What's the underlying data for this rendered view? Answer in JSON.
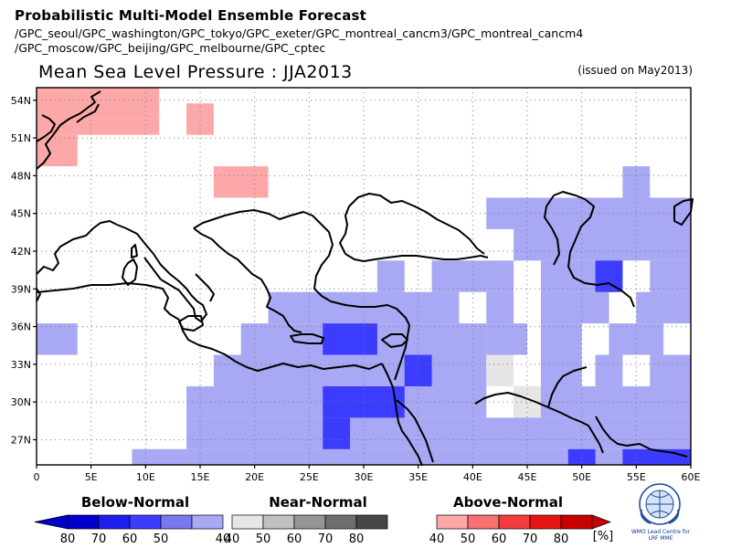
{
  "header": {
    "title": "Probabilistic Multi-Model Ensemble Forecast",
    "sources_line1": "/GPC_seoul/GPC_washington/GPC_tokyo/GPC_exeter/GPC_montreal_cancm3/GPC_montreal_cancm4",
    "sources_line2": "/GPC_moscow/GPC_beijing/GPC_melbourne/GPC_cptec"
  },
  "map": {
    "title": "Mean Sea Level Pressure : JJA2013",
    "issued": "(issued on May2013)",
    "extent": {
      "lon": [
        0,
        60
      ],
      "lat": [
        25,
        55
      ]
    },
    "lat_ticks": [
      {
        "value": 54,
        "label": "54N"
      },
      {
        "value": 51,
        "label": "51N"
      },
      {
        "value": 48,
        "label": "48N"
      },
      {
        "value": 45,
        "label": "45N"
      },
      {
        "value": 42,
        "label": "42N"
      },
      {
        "value": 39,
        "label": "39N"
      },
      {
        "value": 36,
        "label": "36N"
      },
      {
        "value": 33,
        "label": "33N"
      },
      {
        "value": 30,
        "label": "30N"
      },
      {
        "value": 27,
        "label": "27N"
      }
    ],
    "lon_ticks": [
      {
        "value": 0,
        "label": "0"
      },
      {
        "value": 5,
        "label": "5E"
      },
      {
        "value": 10,
        "label": "10E"
      },
      {
        "value": 15,
        "label": "15E"
      },
      {
        "value": 20,
        "label": "20E"
      },
      {
        "value": 25,
        "label": "25E"
      },
      {
        "value": 30,
        "label": "30E"
      },
      {
        "value": 35,
        "label": "35E"
      },
      {
        "value": 40,
        "label": "40E"
      },
      {
        "value": 45,
        "label": "45E"
      },
      {
        "value": 50,
        "label": "50E"
      },
      {
        "value": 55,
        "label": "55E"
      },
      {
        "value": 60,
        "label": "60E"
      }
    ],
    "grid": "dotted"
  },
  "legend": {
    "below": {
      "label": "Below-Normal",
      "ticks": [
        "80",
        "70",
        "60",
        "50",
        "40"
      ],
      "colors": [
        "#0000cc",
        "#1e1ef0",
        "#3c3cff",
        "#7878f0",
        "#a8a8f4"
      ]
    },
    "near": {
      "label": "Near-Normal",
      "ticks": [
        "40",
        "50",
        "60",
        "70",
        "80"
      ],
      "colors": [
        "#e6e6e6",
        "#c0c0c0",
        "#969696",
        "#6e6e6e",
        "#464646"
      ]
    },
    "above": {
      "label": "Above-Normal",
      "ticks": [
        "40",
        "50",
        "60",
        "70",
        "80"
      ],
      "colors": [
        "#fca8a8",
        "#f87070",
        "#f43c3c",
        "#e61414",
        "#c80000"
      ],
      "unit": "[%]"
    }
  },
  "logo": {
    "text": "WMO Lead Centre for LRF MME"
  },
  "chart_data": {
    "type": "heatmap",
    "cell_size_deg": 2.5,
    "colors": {
      "B40": "#a8a8f4",
      "B60": "#3c3cff",
      "B70": "#1e1ef0",
      "N40": "#e6e6e6",
      "A40": "#fca8a8"
    },
    "cells": [
      {
        "lon": 0,
        "lat": 51.25,
        "w": 3.75,
        "h": 3.75,
        "c": "A40"
      },
      {
        "lon": 3.75,
        "lat": 52.5,
        "w": 7.5,
        "h": 2.5,
        "c": "A40"
      },
      {
        "lon": 3.75,
        "lat": 51.25,
        "w": 7.5,
        "h": 1.25,
        "c": "A40"
      },
      {
        "lon": 0,
        "lat": 48.75,
        "w": 3.75,
        "h": 2.5,
        "c": "A40"
      },
      {
        "lon": 13.75,
        "lat": 51.25,
        "w": 2.5,
        "h": 2.5,
        "c": "A40"
      },
      {
        "lon": 16.25,
        "lat": 46.25,
        "w": 5,
        "h": 2.5,
        "c": "A40"
      },
      {
        "lon": 53.75,
        "lat": 46.25,
        "w": 2.5,
        "h": 2.5,
        "c": "B40"
      },
      {
        "lon": 41.25,
        "lat": 43.75,
        "w": 18.75,
        "h": 2.5,
        "c": "B40"
      },
      {
        "lon": 43.75,
        "lat": 41.25,
        "w": 16.25,
        "h": 2.5,
        "c": "B40"
      },
      {
        "lon": 31.25,
        "lat": 38.75,
        "w": 2.5,
        "h": 2.5,
        "c": "B40"
      },
      {
        "lon": 36.25,
        "lat": 38.75,
        "w": 7.5,
        "h": 2.5,
        "c": "B40"
      },
      {
        "lon": 46.25,
        "lat": 38.75,
        "w": 7.5,
        "h": 2.5,
        "c": "B40"
      },
      {
        "lon": 56.25,
        "lat": 38.75,
        "w": 3.75,
        "h": 2.5,
        "c": "B40"
      },
      {
        "lon": 21.25,
        "lat": 36.25,
        "w": 17.5,
        "h": 2.5,
        "c": "B40"
      },
      {
        "lon": 41.25,
        "lat": 36.25,
        "w": 2.5,
        "h": 2.5,
        "c": "B40"
      },
      {
        "lon": 46.25,
        "lat": 36.25,
        "w": 6.25,
        "h": 2.5,
        "c": "B40"
      },
      {
        "lon": 55,
        "lat": 36.25,
        "w": 5,
        "h": 2.5,
        "c": "B40"
      },
      {
        "lon": 0,
        "lat": 33.75,
        "w": 3.75,
        "h": 2.5,
        "c": "B40"
      },
      {
        "lon": 18.75,
        "lat": 33.75,
        "w": 22.5,
        "h": 2.5,
        "c": "B40"
      },
      {
        "lon": 41.25,
        "lat": 33.75,
        "w": 3.75,
        "h": 2.5,
        "c": "B40"
      },
      {
        "lon": 46.25,
        "lat": 33.75,
        "w": 3.75,
        "h": 2.5,
        "c": "B40"
      },
      {
        "lon": 52.5,
        "lat": 33.75,
        "w": 5,
        "h": 2.5,
        "c": "B40"
      },
      {
        "lon": 16.25,
        "lat": 31.25,
        "w": 25,
        "h": 2.5,
        "c": "B40"
      },
      {
        "lon": 46.25,
        "lat": 31.25,
        "w": 3.75,
        "h": 2.5,
        "c": "B40"
      },
      {
        "lon": 51.25,
        "lat": 31.25,
        "w": 2.5,
        "h": 2.5,
        "c": "B40"
      },
      {
        "lon": 56.25,
        "lat": 31.25,
        "w": 3.75,
        "h": 2.5,
        "c": "B40"
      },
      {
        "lon": 13.75,
        "lat": 28.75,
        "w": 27.5,
        "h": 2.5,
        "c": "B40"
      },
      {
        "lon": 43.75,
        "lat": 28.75,
        "w": 16.25,
        "h": 2.5,
        "c": "B40"
      },
      {
        "lon": 13.75,
        "lat": 26.25,
        "w": 46.25,
        "h": 2.5,
        "c": "B40"
      },
      {
        "lon": 8.75,
        "lat": 25,
        "w": 51.25,
        "h": 1.25,
        "c": "B40"
      },
      {
        "lon": 26.25,
        "lat": 33.75,
        "w": 5,
        "h": 2.5,
        "c": "B60"
      },
      {
        "lon": 33.75,
        "lat": 31.25,
        "w": 2.5,
        "h": 2.5,
        "c": "B60"
      },
      {
        "lon": 26.25,
        "lat": 28.75,
        "w": 7.5,
        "h": 2.5,
        "c": "B60"
      },
      {
        "lon": 26.25,
        "lat": 26.25,
        "w": 2.5,
        "h": 2.5,
        "c": "B60"
      },
      {
        "lon": 51.25,
        "lat": 38.75,
        "w": 2.5,
        "h": 2.5,
        "c": "B60"
      },
      {
        "lon": 48.75,
        "lat": 25,
        "w": 2.5,
        "h": 1.25,
        "c": "B60"
      },
      {
        "lon": 53.75,
        "lat": 25,
        "w": 6.25,
        "h": 1.25,
        "c": "B60"
      },
      {
        "lon": 41.25,
        "lat": 31.25,
        "w": 2.5,
        "h": 2.5,
        "c": "N40"
      },
      {
        "lon": 43.75,
        "lat": 28.75,
        "w": 2.5,
        "h": 2.5,
        "c": "N40"
      }
    ]
  }
}
